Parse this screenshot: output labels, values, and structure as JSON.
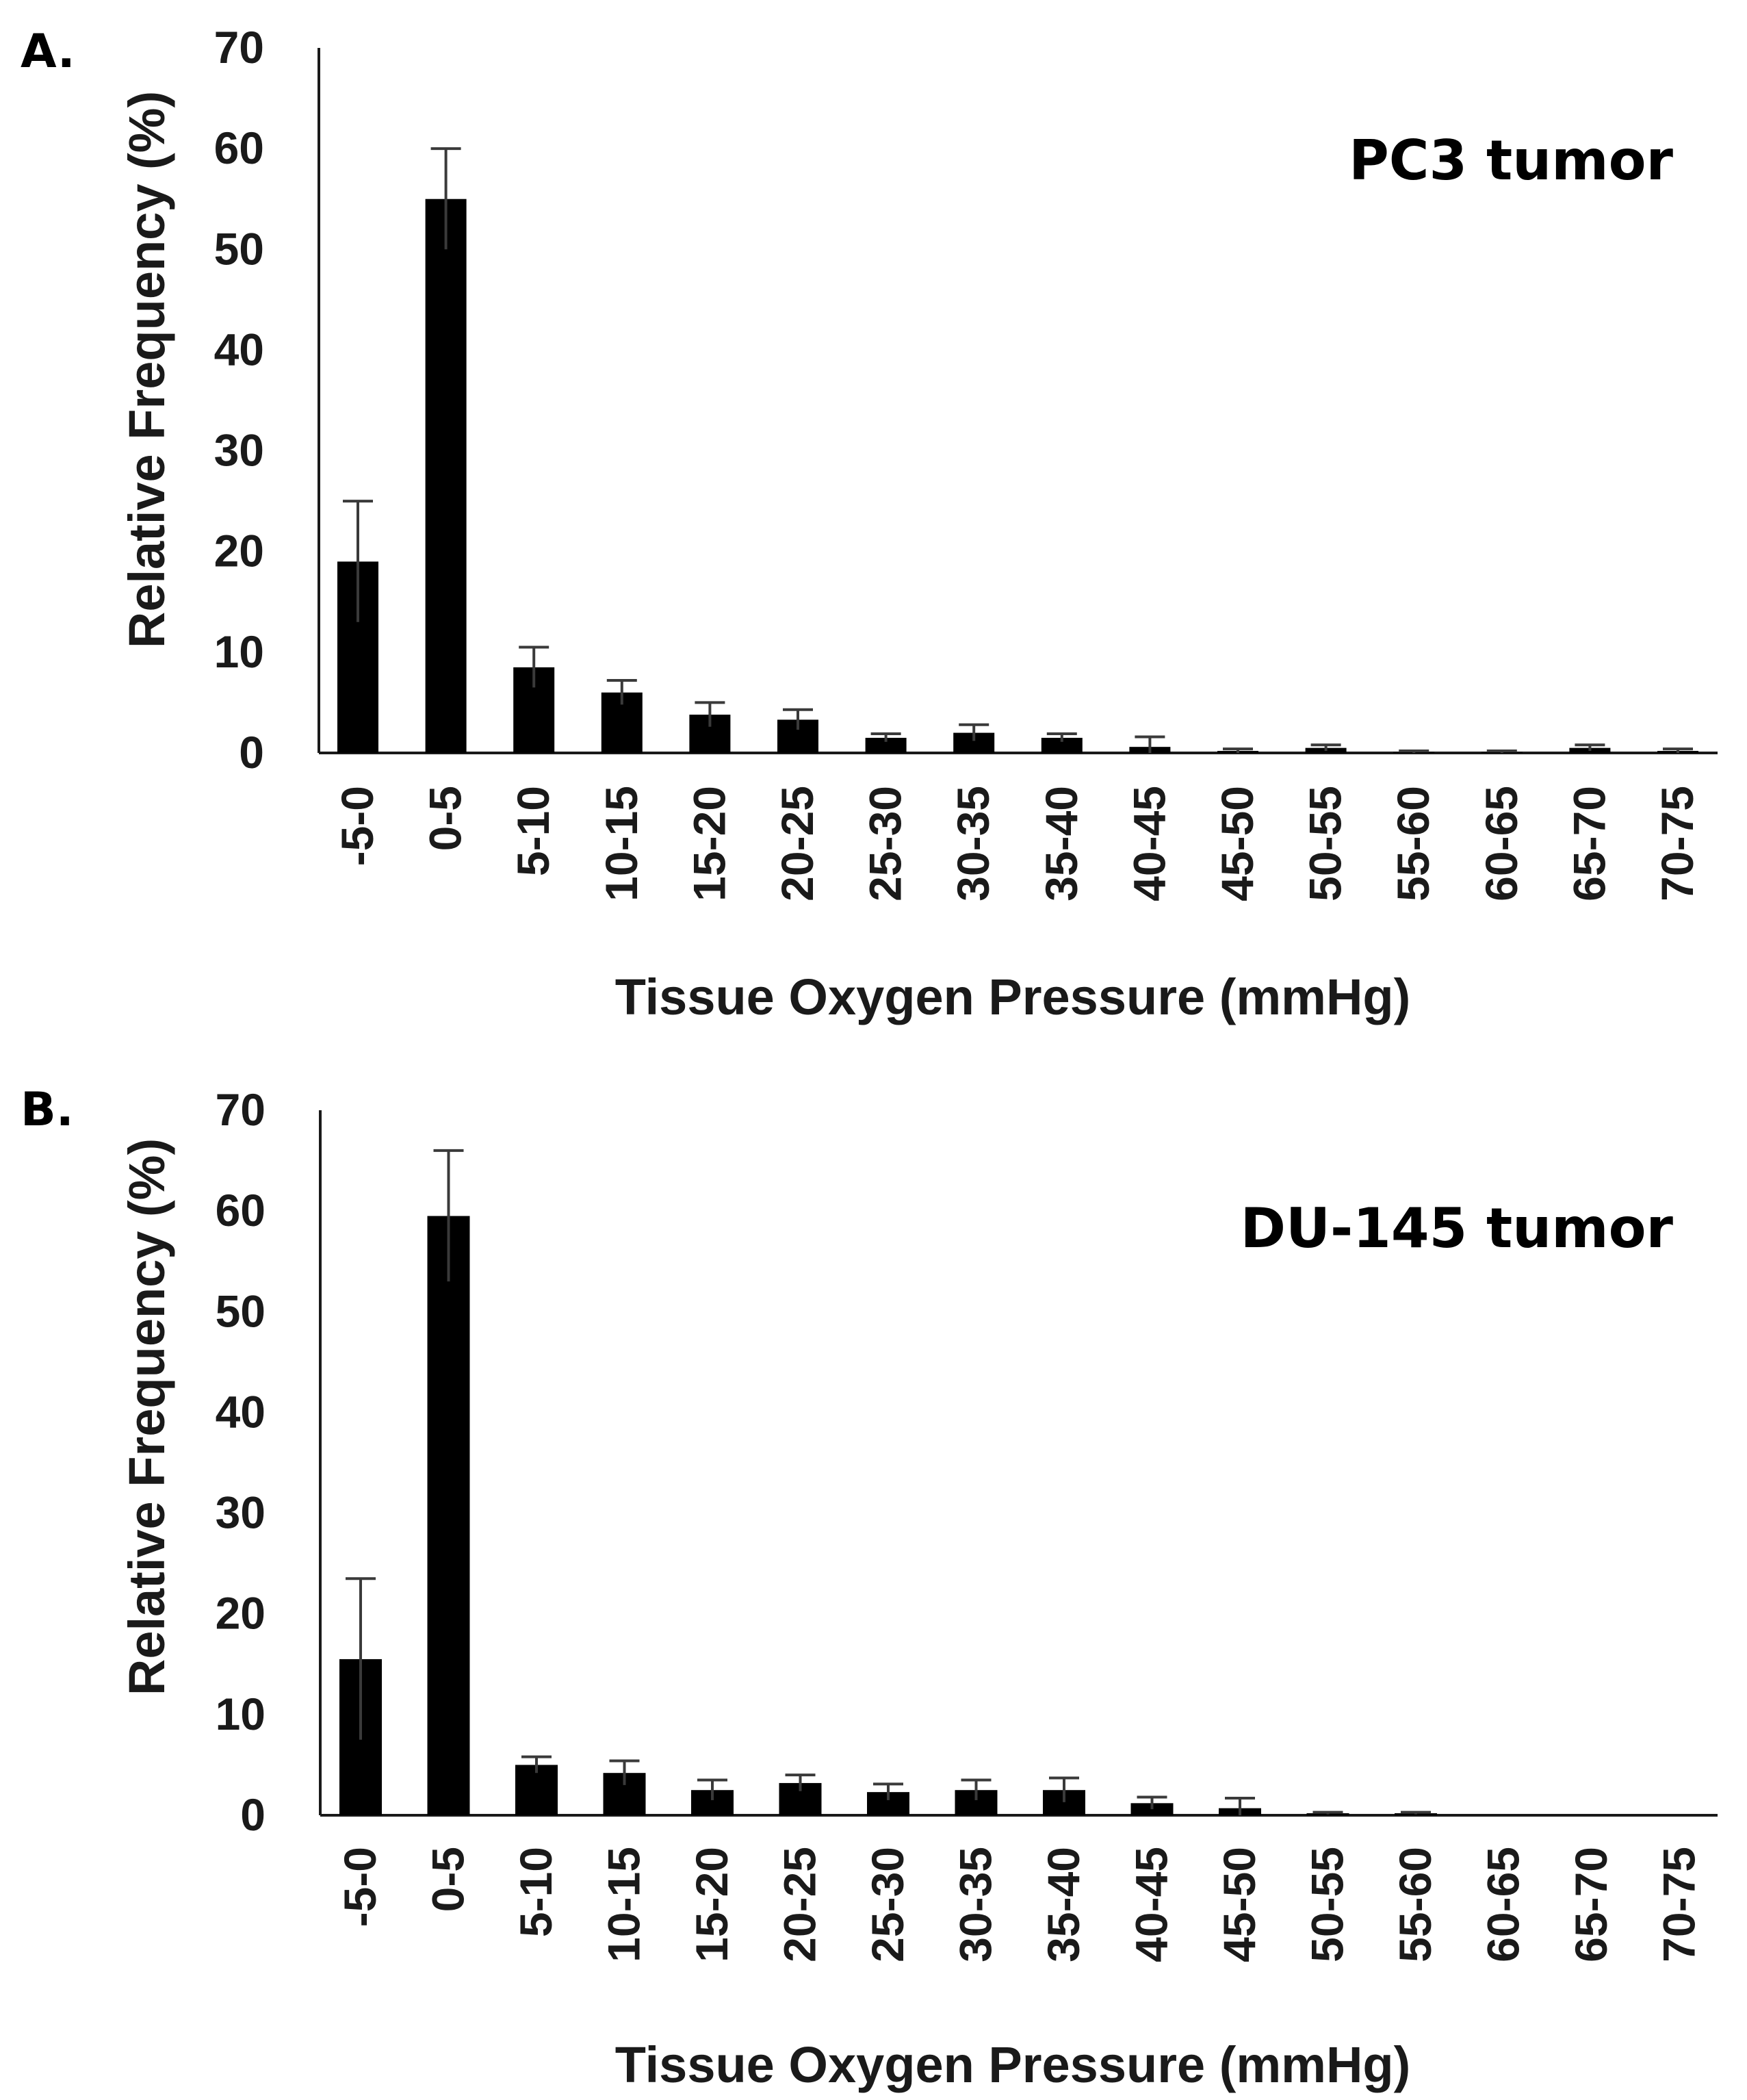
{
  "figure": {
    "bar_color": "#000000",
    "axis_color": "#1a1a1a",
    "errorbar_color": "#3a3a3a"
  },
  "chart_data": [
    {
      "type": "bar",
      "panel_label": "A.",
      "annotation": "PC3 tumor",
      "categories": [
        "-5-0",
        "0-5",
        "5-10",
        "10-15",
        "15-20",
        "20-25",
        "25-30",
        "30-35",
        "35-40",
        "40-45",
        "45-50",
        "50-55",
        "55-60",
        "60-65",
        "65-70",
        "70-75"
      ],
      "values": [
        19,
        55,
        8.5,
        6,
        3.8,
        3.3,
        1.5,
        2,
        1.5,
        0.6,
        0.2,
        0.5,
        0.1,
        0.1,
        0.5,
        0.2
      ],
      "error": [
        6,
        5,
        2,
        1.2,
        1.2,
        1,
        0.4,
        0.8,
        0.4,
        1,
        0.2,
        0.3,
        0.1,
        0.1,
        0.3,
        0.2
      ],
      "xlabel": "Tissue  Oxygen Pressure (mmHg)",
      "ylabel": "Relative Frequency (%)",
      "ylim": [
        0,
        70
      ],
      "yticks": [
        0,
        10,
        20,
        30,
        40,
        50,
        60,
        70
      ]
    },
    {
      "type": "bar",
      "panel_label": "B.",
      "annotation": "DU-145 tumor",
      "categories": [
        "-5-0",
        "0-5",
        "5-10",
        "10-15",
        "15-20",
        "20-25",
        "25-30",
        "30-35",
        "35-40",
        "40-45",
        "45-50",
        "50-55",
        "55-60",
        "60-65",
        "65-70",
        "70-75"
      ],
      "values": [
        15.5,
        59.5,
        5,
        4.2,
        2.5,
        3.2,
        2.3,
        2.5,
        2.5,
        1.2,
        0.7,
        0.2,
        0.2,
        0,
        0,
        0
      ],
      "error": [
        8,
        6.5,
        0.8,
        1.2,
        1,
        0.8,
        0.8,
        1,
        1.2,
        0.6,
        1,
        0.1,
        0.1,
        0,
        0,
        0
      ],
      "xlabel": "Tissue  Oxygen Pressure (mmHg)",
      "ylabel": "Relative Frequency (%)",
      "ylim": [
        0,
        70
      ],
      "yticks": [
        0,
        10,
        20,
        30,
        40,
        50,
        60,
        70
      ]
    }
  ]
}
